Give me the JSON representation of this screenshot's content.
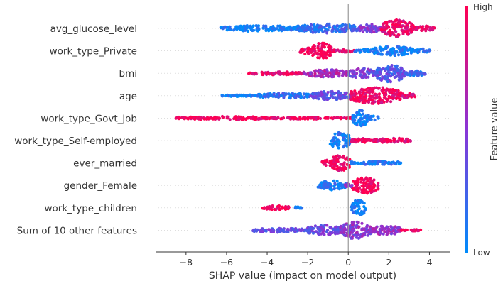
{
  "chart_data": {
    "type": "scatter",
    "subtype": "shap-beeswarm",
    "title": "",
    "xlabel": "SHAP value (impact on model output)",
    "xlim": [
      -9.5,
      5.0
    ],
    "xticks": [
      -8,
      -6,
      -4,
      -2,
      0,
      2,
      4
    ],
    "tick_labels": [
      "−8",
      "−6",
      "−4",
      "−2",
      "0",
      "2",
      "4"
    ],
    "zero_line": 0,
    "colorbar": {
      "label": "Feature value",
      "high": "High",
      "low": "Low",
      "color_high": "#ff0052",
      "color_mid": "#8a35d6",
      "color_low": "#008bfb"
    },
    "features": [
      {
        "name": "avg_glucose_level",
        "segments": [
          {
            "from": -6.3,
            "to": -2.5,
            "color": 0.05,
            "width": 0.35
          },
          {
            "from": -2.5,
            "to": 0.5,
            "color": 0.2,
            "width": 0.55
          },
          {
            "from": 0.5,
            "to": 1.6,
            "color": 0.5,
            "width": 0.5
          },
          {
            "from": 1.6,
            "to": 3.2,
            "color": 0.9,
            "width": 1.0
          },
          {
            "from": 3.2,
            "to": 4.3,
            "color": 0.95,
            "width": 0.3
          }
        ]
      },
      {
        "name": "work_type_Private",
        "segments": [
          {
            "from": -2.4,
            "to": -1.8,
            "color": 0.97,
            "width": 0.4
          },
          {
            "from": -1.8,
            "to": -0.8,
            "color": 0.98,
            "width": 0.95
          },
          {
            "from": -0.8,
            "to": 0.3,
            "color": 0.9,
            "width": 0.18
          },
          {
            "from": 0.3,
            "to": 1.2,
            "color": 0.08,
            "width": 0.2
          },
          {
            "from": 1.2,
            "to": 3.2,
            "color": 0.05,
            "width": 0.55
          },
          {
            "from": 3.2,
            "to": 4.0,
            "color": 0.05,
            "width": 0.25
          }
        ]
      },
      {
        "name": "bmi",
        "segments": [
          {
            "from": -5.0,
            "to": -2.2,
            "color": 0.9,
            "width": 0.18
          },
          {
            "from": -2.2,
            "to": 0.0,
            "color": 0.6,
            "width": 0.45
          },
          {
            "from": 0.0,
            "to": 1.3,
            "color": 0.45,
            "width": 0.6
          },
          {
            "from": 1.3,
            "to": 2.8,
            "color": 0.3,
            "width": 1.0
          },
          {
            "from": 2.8,
            "to": 3.8,
            "color": 0.2,
            "width": 0.3
          }
        ]
      },
      {
        "name": "age",
        "segments": [
          {
            "from": -6.3,
            "to": -4.5,
            "color": 0.05,
            "width": 0.12
          },
          {
            "from": -4.5,
            "to": -1.8,
            "color": 0.15,
            "width": 0.3
          },
          {
            "from": -1.8,
            "to": 0.1,
            "color": 0.35,
            "width": 0.55
          },
          {
            "from": 0.1,
            "to": 2.6,
            "color": 0.92,
            "width": 1.0
          },
          {
            "from": 2.6,
            "to": 3.3,
            "color": 0.9,
            "width": 0.3
          }
        ]
      },
      {
        "name": "work_type_Govt_job",
        "segments": [
          {
            "from": -8.5,
            "to": -7.9,
            "color": 0.98,
            "width": 0.15
          },
          {
            "from": -7.9,
            "to": -4.0,
            "color": 0.98,
            "width": 0.22
          },
          {
            "from": -4.0,
            "to": 0.2,
            "color": 0.96,
            "width": 0.12
          },
          {
            "from": 0.2,
            "to": 1.0,
            "color": 0.05,
            "width": 0.95
          },
          {
            "from": 1.0,
            "to": 1.5,
            "color": 0.05,
            "width": 0.25
          }
        ]
      },
      {
        "name": "work_type_Self-employed",
        "segments": [
          {
            "from": -0.9,
            "to": 0.1,
            "color": 0.08,
            "width": 0.95
          },
          {
            "from": 0.1,
            "to": 1.2,
            "color": 0.95,
            "width": 0.25
          },
          {
            "from": 1.2,
            "to": 3.1,
            "color": 0.9,
            "width": 0.28
          }
        ]
      },
      {
        "name": "ever_married",
        "segments": [
          {
            "from": -1.3,
            "to": -0.9,
            "color": 0.97,
            "width": 0.35
          },
          {
            "from": -0.9,
            "to": 0.1,
            "color": 0.97,
            "width": 0.95
          },
          {
            "from": 0.1,
            "to": 2.6,
            "color": 0.1,
            "width": 0.22
          }
        ]
      },
      {
        "name": "gender_Female",
        "segments": [
          {
            "from": -1.5,
            "to": -0.1,
            "color": 0.1,
            "width": 0.55
          },
          {
            "from": 0.2,
            "to": 1.5,
            "color": 0.97,
            "width": 0.95
          },
          {
            "from": -0.2,
            "to": 0.2,
            "color": 0.5,
            "width": 0.2
          }
        ]
      },
      {
        "name": "work_type_children",
        "segments": [
          {
            "from": -4.3,
            "to": -2.9,
            "color": 0.98,
            "width": 0.25
          },
          {
            "from": -2.7,
            "to": -2.3,
            "color": 0.05,
            "width": 0.15
          },
          {
            "from": 0.15,
            "to": 0.85,
            "color": 0.05,
            "width": 0.95
          }
        ]
      },
      {
        "name": "Sum of 10 other features",
        "segments": [
          {
            "from": -4.7,
            "to": -2.0,
            "color": 0.35,
            "width": 0.25
          },
          {
            "from": -2.0,
            "to": -0.4,
            "color": 0.4,
            "width": 0.6
          },
          {
            "from": -0.4,
            "to": 1.1,
            "color": 0.5,
            "width": 1.0
          },
          {
            "from": 1.1,
            "to": 2.6,
            "color": 0.55,
            "width": 0.55
          },
          {
            "from": 2.6,
            "to": 3.6,
            "color": 0.95,
            "width": 0.12
          }
        ]
      }
    ]
  }
}
